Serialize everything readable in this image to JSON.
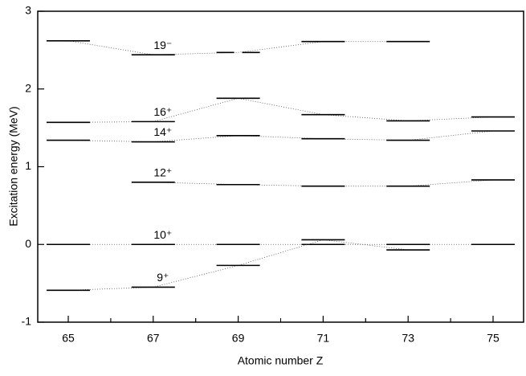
{
  "chart_data": {
    "type": "level-scheme",
    "x_label": "Atomic number Z",
    "y_label": "Excitation energy (MeV)",
    "categories": [
      "65",
      "67",
      "69",
      "71",
      "73",
      "75"
    ],
    "ylim": [
      -1,
      3
    ],
    "yticks": [
      -1,
      0,
      1,
      2,
      3
    ],
    "color": "#000000",
    "series": [
      {
        "name": "19⁻",
        "values": [
          2.62,
          2.44,
          2.47,
          2.61,
          2.61,
          null
        ],
        "dashed": [
          2
        ]
      },
      {
        "name": "16⁺",
        "values": [
          1.57,
          1.58,
          1.88,
          1.67,
          1.59,
          1.64
        ]
      },
      {
        "name": "14⁺",
        "values": [
          1.34,
          1.32,
          1.4,
          1.36,
          1.34,
          1.46
        ]
      },
      {
        "name": "12⁺",
        "values": [
          null,
          0.8,
          0.77,
          0.75,
          0.75,
          0.83
        ]
      },
      {
        "name": "10⁺",
        "values": [
          0,
          0,
          0,
          0,
          0,
          0
        ]
      },
      {
        "name": "9⁺",
        "values": [
          -0.59,
          -0.55,
          -0.27,
          0.06,
          -0.07,
          null
        ]
      }
    ]
  }
}
